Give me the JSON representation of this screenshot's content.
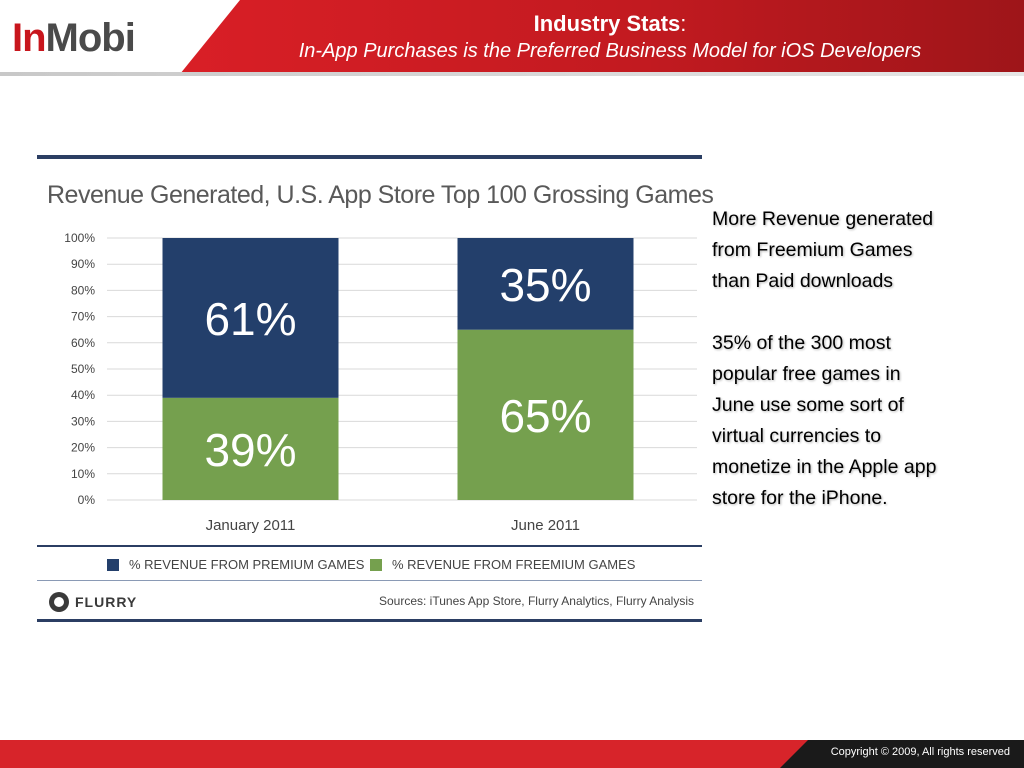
{
  "header": {
    "logo_in": "In",
    "logo_mobi": "Mobi",
    "title": "Industry Stats",
    "title_colon": ":",
    "subtitle": "In-App Purchases is the Preferred Business Model for  iOS Developers"
  },
  "colors": {
    "brand_red": "#d7242a",
    "premium_series": "#233f6b",
    "freemium_series": "#75a04e"
  },
  "chart_data": {
    "type": "bar",
    "stacked": true,
    "title": "Revenue Generated, U.S. App Store Top 100 Grossing Games",
    "categories": [
      "January 2011",
      "June 2011"
    ],
    "series": [
      {
        "name": "% REVENUE FROM FREEMIUM GAMES",
        "values": [
          39,
          65
        ],
        "labels": [
          "39%",
          "65%"
        ],
        "color": "#75a04e"
      },
      {
        "name": "% REVENUE FROM PREMIUM GAMES",
        "values": [
          61,
          35
        ],
        "labels": [
          "61%",
          "35%"
        ],
        "color": "#233f6b"
      }
    ],
    "y_ticks": [
      "0%",
      "10%",
      "20%",
      "30%",
      "40%",
      "50%",
      "60%",
      "70%",
      "80%",
      "90%",
      "100%"
    ],
    "ylim": [
      0,
      100
    ],
    "grid": true,
    "legend_position": "bottom",
    "legend": [
      {
        "label": "% REVENUE FROM PREMIUM GAMES",
        "color": "#233f6b"
      },
      {
        "label": "% REVENUE FROM FREEMIUM GAMES",
        "color": "#75a04e"
      }
    ],
    "brand": "FLURRY",
    "sources": "Sources: iTunes App Store, Flurry Analytics, Flurry Analysis"
  },
  "side_text": {
    "para1": [
      "More Revenue generated",
      "from Freemium Games",
      "than Paid downloads"
    ],
    "para2": [
      "35% of the 300 most",
      "popular free games in",
      "June use some sort of",
      "virtual currencies to",
      "monetize in the Apple app",
      "store for the iPhone."
    ]
  },
  "footer": {
    "copyright": "Copyright © 2009, All rights reserved"
  }
}
